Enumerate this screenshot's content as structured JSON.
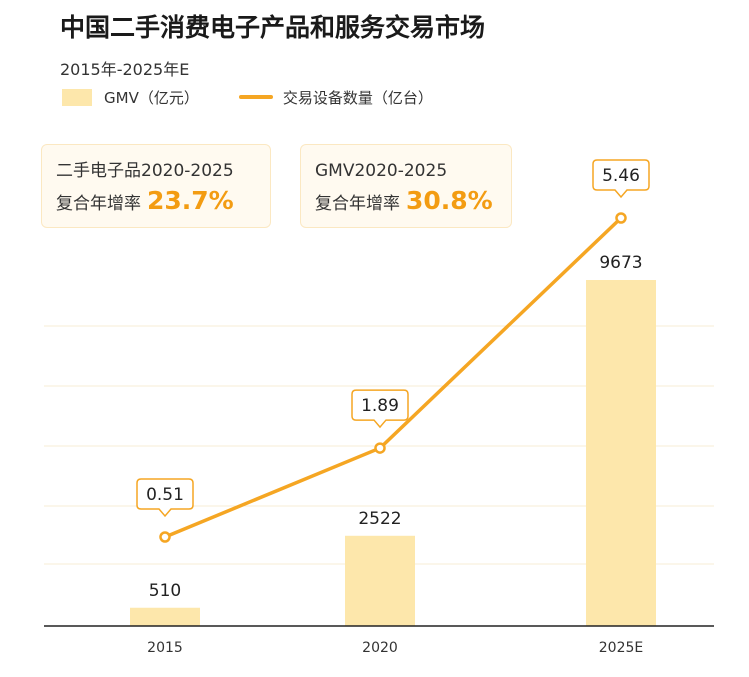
{
  "title": "中国二手消费电子产品和服务交易市场",
  "subtitle": "2015年-2025年E",
  "legend": {
    "bar_label": "GMV（亿元）",
    "line_label": "交易设备数量（亿台）"
  },
  "callouts": [
    {
      "line1": "二手电子品2020-2025",
      "line2": "复合年增率",
      "value": "23.7%"
    },
    {
      "line1": "GMV2020-2025",
      "line2": "复合年增率",
      "value": "30.8%"
    }
  ],
  "colors": {
    "bar": "#fde7ab",
    "line": "#f5a623",
    "highlight": "#f39c12"
  },
  "chart_data": {
    "type": "bar",
    "categories": [
      "2015",
      "2020",
      "2025E"
    ],
    "series": [
      {
        "name": "GMV（亿元）",
        "type": "bar",
        "values": [
          510,
          2522,
          9673
        ]
      },
      {
        "name": "交易设备数量（亿台）",
        "type": "line",
        "values": [
          0.51,
          1.89,
          5.46
        ]
      }
    ],
    "bar_labels": [
      "510",
      "2522",
      "9673"
    ],
    "line_labels": [
      "0.51",
      "1.89",
      "5.46"
    ],
    "grid": true
  }
}
